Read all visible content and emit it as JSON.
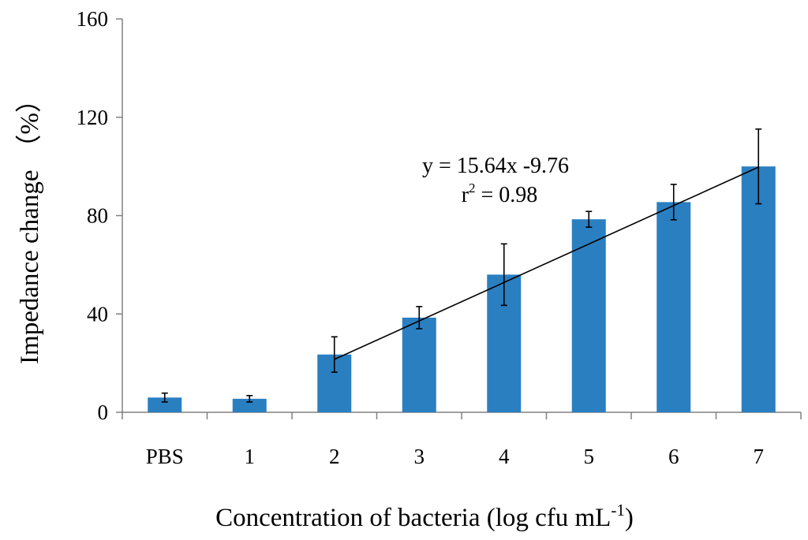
{
  "chart_data": {
    "type": "bar",
    "categories": [
      "PBS",
      "1",
      "2",
      "3",
      "4",
      "5",
      "6",
      "7"
    ],
    "values": [
      6,
      5.5,
      23.5,
      38.5,
      56,
      78.5,
      85.5,
      100
    ],
    "errors": [
      1.8,
      1.3,
      7.2,
      4.5,
      12.5,
      3.2,
      7.2,
      15.2
    ],
    "ylim": [
      0,
      160
    ],
    "yticks": [
      0,
      40,
      80,
      120,
      160
    ],
    "ytick_labels": [
      "0",
      "40",
      "80",
      "120",
      "160"
    ],
    "ylabel_main": "Impedance change",
    "ylabel_unit": "（%）",
    "xlabel_main": "Concentration of bacteria (log cfu mL",
    "xlabel_sup": "-1",
    "xlabel_end": ")",
    "bar_color": "#2a7fc1",
    "grid": false,
    "trendline": {
      "slope": 15.64,
      "intercept": -9.76,
      "x_start": 2,
      "x_end": 7,
      "equation": "y = 15.64x -9.76",
      "r2_base": "r",
      "r2_sup": "2",
      "r2_rest": " = 0.98"
    }
  }
}
